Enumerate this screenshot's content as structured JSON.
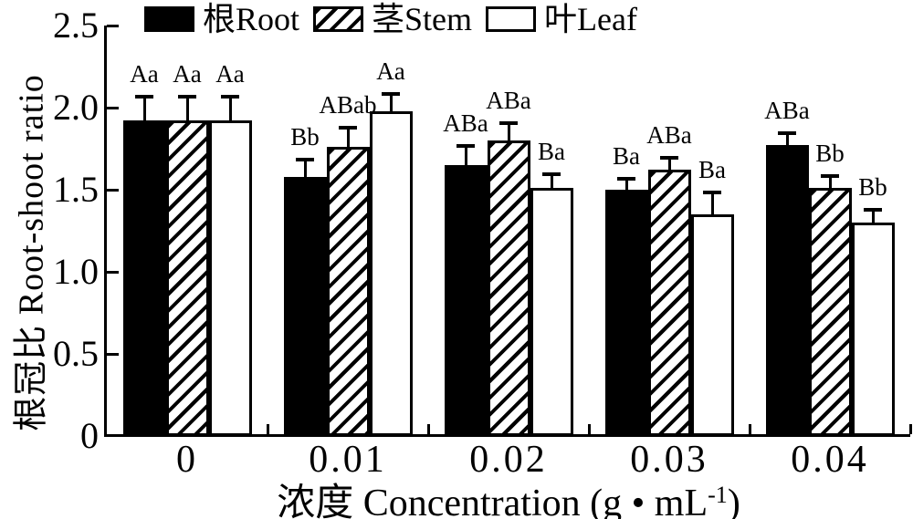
{
  "figure": {
    "background": "#ffffff",
    "ink_color": "#000000"
  },
  "legend": {
    "items": [
      {
        "label": "根Root",
        "fill": "solid",
        "swatch": "black-filled-rect"
      },
      {
        "label": "茎Stem",
        "fill": "hatch",
        "swatch": "diagonal-hatched-rect"
      },
      {
        "label": "叶Leaf",
        "fill": "none",
        "swatch": "white-rect"
      }
    ]
  },
  "axes": {
    "y_title": "根冠比 Root-shoot ratio",
    "x_title_prefix": "浓度 Concentration (g • mL",
    "x_title_sup": "-1",
    "x_title_suffix": ")",
    "y_ticks": [
      "0",
      "0.5",
      "1.0",
      "1.5",
      "2.0",
      "2.5"
    ],
    "x_ticks": [
      "0",
      "0.01",
      "0.02",
      "0.03",
      "0.04"
    ]
  },
  "chart_data": {
    "type": "bar",
    "title": "",
    "xlabel": "浓度 Concentration (g • mL⁻¹)",
    "ylabel": "根冠比 Root-shoot ratio",
    "categories": [
      "0",
      "0.01",
      "0.02",
      "0.03",
      "0.04"
    ],
    "ylim": [
      0,
      2.5
    ],
    "ytick_step": 0.5,
    "grid": false,
    "legend_position": "top",
    "error_bars": "upper-only",
    "series": [
      {
        "name": "根Root",
        "pattern": "solid",
        "values": [
          1.92,
          1.58,
          1.65,
          1.5,
          1.77
        ],
        "errors": [
          0.14,
          0.1,
          0.11,
          0.06,
          0.07
        ],
        "sig_labels": [
          "Aa",
          "Bb",
          "ABa",
          "Ba",
          "ABa"
        ]
      },
      {
        "name": "茎Stem",
        "pattern": "hatch",
        "values": [
          1.92,
          1.76,
          1.8,
          1.62,
          1.51
        ],
        "errors": [
          0.14,
          0.11,
          0.1,
          0.07,
          0.07
        ],
        "sig_labels": [
          "Aa",
          "ABab",
          "ABa",
          "ABa",
          "Bb"
        ]
      },
      {
        "name": "叶Leaf",
        "pattern": "none",
        "values": [
          1.92,
          1.98,
          1.51,
          1.35,
          1.3
        ],
        "errors": [
          0.14,
          0.1,
          0.08,
          0.13,
          0.07
        ],
        "sig_labels": [
          "Aa",
          "Aa",
          "Ba",
          "Ba",
          "Bb"
        ]
      }
    ]
  }
}
